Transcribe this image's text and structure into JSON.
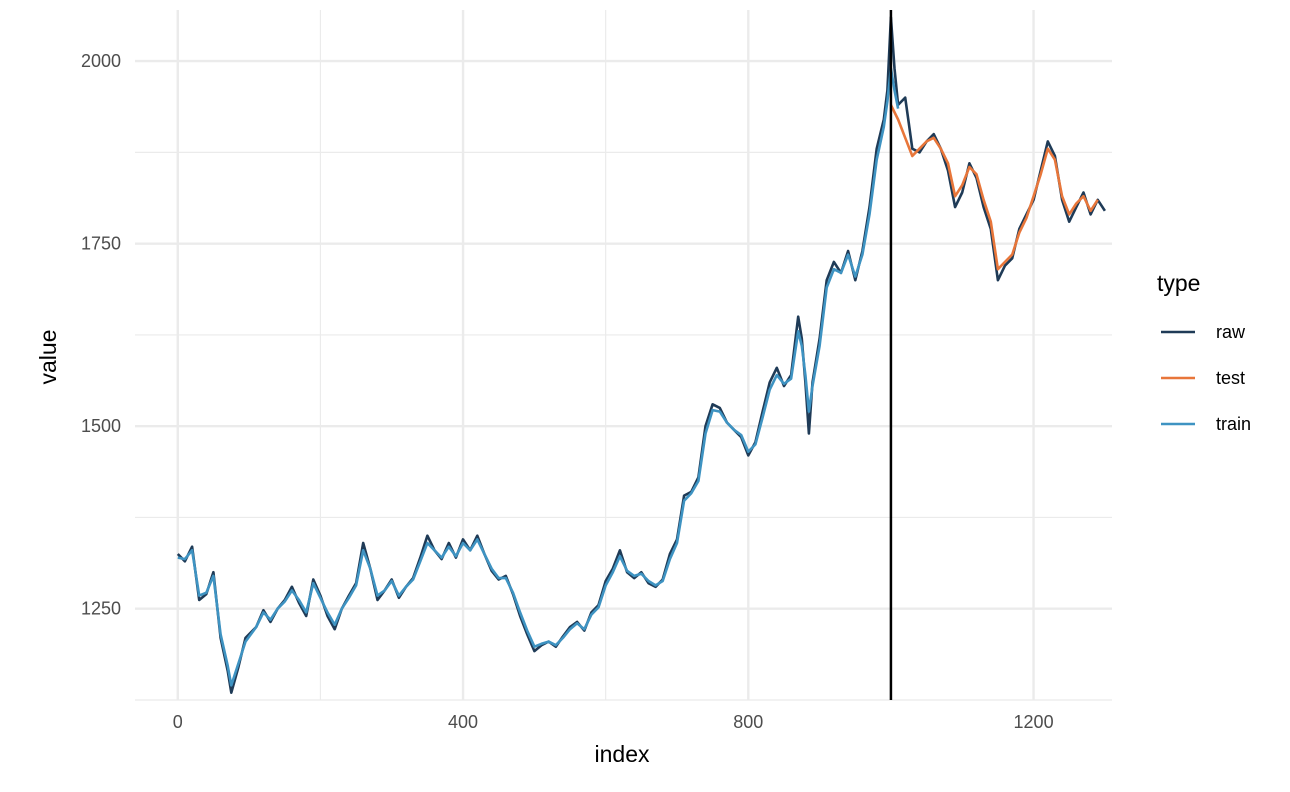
{
  "chart_data": {
    "type": "line",
    "xlabel": "index",
    "ylabel": "value",
    "xlim": [
      -60,
      1310
    ],
    "ylim": [
      1125,
      2070
    ],
    "x_ticks": [
      0,
      400,
      800,
      1200
    ],
    "y_ticks": [
      1250,
      1500,
      1750,
      2000
    ],
    "grid": true,
    "legend": {
      "title": "type",
      "placement": "right"
    },
    "vline_x": 1000,
    "series": [
      {
        "name": "raw",
        "color": "#1f3b57",
        "points": [
          [
            0,
            1325
          ],
          [
            10,
            1315
          ],
          [
            20,
            1335
          ],
          [
            30,
            1262
          ],
          [
            40,
            1270
          ],
          [
            50,
            1300
          ],
          [
            60,
            1210
          ],
          [
            70,
            1165
          ],
          [
            75,
            1135
          ],
          [
            85,
            1170
          ],
          [
            95,
            1210
          ],
          [
            110,
            1225
          ],
          [
            120,
            1248
          ],
          [
            130,
            1232
          ],
          [
            140,
            1250
          ],
          [
            150,
            1262
          ],
          [
            160,
            1280
          ],
          [
            170,
            1258
          ],
          [
            180,
            1240
          ],
          [
            190,
            1290
          ],
          [
            200,
            1268
          ],
          [
            210,
            1240
          ],
          [
            220,
            1222
          ],
          [
            230,
            1250
          ],
          [
            240,
            1268
          ],
          [
            250,
            1285
          ],
          [
            260,
            1340
          ],
          [
            270,
            1305
          ],
          [
            280,
            1262
          ],
          [
            290,
            1275
          ],
          [
            300,
            1290
          ],
          [
            310,
            1265
          ],
          [
            320,
            1280
          ],
          [
            330,
            1292
          ],
          [
            340,
            1320
          ],
          [
            350,
            1350
          ],
          [
            360,
            1330
          ],
          [
            370,
            1318
          ],
          [
            380,
            1340
          ],
          [
            390,
            1320
          ],
          [
            400,
            1345
          ],
          [
            410,
            1330
          ],
          [
            420,
            1350
          ],
          [
            430,
            1325
          ],
          [
            440,
            1302
          ],
          [
            450,
            1290
          ],
          [
            460,
            1295
          ],
          [
            470,
            1270
          ],
          [
            480,
            1240
          ],
          [
            490,
            1215
          ],
          [
            500,
            1192
          ],
          [
            510,
            1200
          ],
          [
            520,
            1205
          ],
          [
            530,
            1198
          ],
          [
            540,
            1212
          ],
          [
            550,
            1225
          ],
          [
            560,
            1232
          ],
          [
            570,
            1220
          ],
          [
            580,
            1245
          ],
          [
            590,
            1255
          ],
          [
            600,
            1288
          ],
          [
            610,
            1305
          ],
          [
            620,
            1330
          ],
          [
            630,
            1300
          ],
          [
            640,
            1292
          ],
          [
            650,
            1300
          ],
          [
            660,
            1285
          ],
          [
            670,
            1280
          ],
          [
            680,
            1290
          ],
          [
            690,
            1325
          ],
          [
            700,
            1345
          ],
          [
            710,
            1405
          ],
          [
            720,
            1410
          ],
          [
            730,
            1430
          ],
          [
            740,
            1500
          ],
          [
            750,
            1530
          ],
          [
            760,
            1525
          ],
          [
            770,
            1505
          ],
          [
            780,
            1495
          ],
          [
            790,
            1485
          ],
          [
            800,
            1460
          ],
          [
            810,
            1478
          ],
          [
            820,
            1520
          ],
          [
            830,
            1560
          ],
          [
            840,
            1580
          ],
          [
            850,
            1555
          ],
          [
            860,
            1570
          ],
          [
            870,
            1650
          ],
          [
            875,
            1620
          ],
          [
            880,
            1560
          ],
          [
            885,
            1490
          ],
          [
            890,
            1560
          ],
          [
            900,
            1620
          ],
          [
            910,
            1700
          ],
          [
            920,
            1725
          ],
          [
            930,
            1710
          ],
          [
            940,
            1740
          ],
          [
            950,
            1700
          ],
          [
            960,
            1740
          ],
          [
            970,
            1800
          ],
          [
            980,
            1880
          ],
          [
            990,
            1920
          ],
          [
            995,
            1960
          ],
          [
            1000,
            2060
          ],
          [
            1005,
            1990
          ],
          [
            1010,
            1940
          ],
          [
            1020,
            1950
          ],
          [
            1025,
            1915
          ],
          [
            1030,
            1880
          ],
          [
            1040,
            1875
          ],
          [
            1050,
            1890
          ],
          [
            1060,
            1900
          ],
          [
            1070,
            1880
          ],
          [
            1080,
            1850
          ],
          [
            1090,
            1800
          ],
          [
            1100,
            1820
          ],
          [
            1110,
            1860
          ],
          [
            1120,
            1840
          ],
          [
            1130,
            1800
          ],
          [
            1140,
            1770
          ],
          [
            1150,
            1700
          ],
          [
            1160,
            1720
          ],
          [
            1170,
            1730
          ],
          [
            1180,
            1770
          ],
          [
            1190,
            1790
          ],
          [
            1200,
            1810
          ],
          [
            1210,
            1850
          ],
          [
            1220,
            1890
          ],
          [
            1230,
            1870
          ],
          [
            1240,
            1810
          ],
          [
            1250,
            1780
          ],
          [
            1260,
            1800
          ],
          [
            1270,
            1820
          ],
          [
            1280,
            1790
          ],
          [
            1290,
            1810
          ],
          [
            1300,
            1795
          ]
        ]
      },
      {
        "name": "test",
        "color": "#e8763a",
        "points": [
          [
            1000,
            1940
          ],
          [
            1010,
            1920
          ],
          [
            1020,
            1895
          ],
          [
            1030,
            1870
          ],
          [
            1040,
            1880
          ],
          [
            1050,
            1890
          ],
          [
            1060,
            1895
          ],
          [
            1070,
            1880
          ],
          [
            1080,
            1860
          ],
          [
            1090,
            1815
          ],
          [
            1100,
            1830
          ],
          [
            1110,
            1855
          ],
          [
            1120,
            1845
          ],
          [
            1130,
            1810
          ],
          [
            1140,
            1780
          ],
          [
            1150,
            1715
          ],
          [
            1160,
            1725
          ],
          [
            1170,
            1735
          ],
          [
            1180,
            1765
          ],
          [
            1190,
            1785
          ],
          [
            1200,
            1815
          ],
          [
            1210,
            1845
          ],
          [
            1220,
            1880
          ],
          [
            1230,
            1865
          ],
          [
            1240,
            1815
          ],
          [
            1250,
            1790
          ],
          [
            1260,
            1805
          ],
          [
            1270,
            1815
          ],
          [
            1280,
            1795
          ],
          [
            1290,
            1810
          ]
        ]
      },
      {
        "name": "train",
        "color": "#3e93c2",
        "points": [
          [
            0,
            1320
          ],
          [
            10,
            1318
          ],
          [
            20,
            1330
          ],
          [
            30,
            1268
          ],
          [
            40,
            1272
          ],
          [
            50,
            1295
          ],
          [
            60,
            1215
          ],
          [
            70,
            1172
          ],
          [
            75,
            1145
          ],
          [
            85,
            1175
          ],
          [
            95,
            1205
          ],
          [
            110,
            1225
          ],
          [
            120,
            1245
          ],
          [
            130,
            1235
          ],
          [
            140,
            1250
          ],
          [
            150,
            1260
          ],
          [
            160,
            1275
          ],
          [
            170,
            1262
          ],
          [
            180,
            1245
          ],
          [
            190,
            1285
          ],
          [
            200,
            1265
          ],
          [
            210,
            1245
          ],
          [
            220,
            1228
          ],
          [
            230,
            1250
          ],
          [
            240,
            1265
          ],
          [
            250,
            1282
          ],
          [
            260,
            1330
          ],
          [
            270,
            1305
          ],
          [
            280,
            1268
          ],
          [
            290,
            1275
          ],
          [
            300,
            1288
          ],
          [
            310,
            1268
          ],
          [
            320,
            1280
          ],
          [
            330,
            1290
          ],
          [
            340,
            1315
          ],
          [
            350,
            1340
          ],
          [
            360,
            1330
          ],
          [
            370,
            1320
          ],
          [
            380,
            1335
          ],
          [
            390,
            1322
          ],
          [
            400,
            1340
          ],
          [
            410,
            1330
          ],
          [
            420,
            1345
          ],
          [
            430,
            1325
          ],
          [
            440,
            1305
          ],
          [
            450,
            1292
          ],
          [
            460,
            1292
          ],
          [
            470,
            1272
          ],
          [
            480,
            1245
          ],
          [
            490,
            1220
          ],
          [
            500,
            1198
          ],
          [
            510,
            1202
          ],
          [
            520,
            1205
          ],
          [
            530,
            1200
          ],
          [
            540,
            1210
          ],
          [
            550,
            1222
          ],
          [
            560,
            1230
          ],
          [
            570,
            1222
          ],
          [
            580,
            1242
          ],
          [
            590,
            1252
          ],
          [
            600,
            1282
          ],
          [
            610,
            1300
          ],
          [
            620,
            1322
          ],
          [
            630,
            1302
          ],
          [
            640,
            1295
          ],
          [
            650,
            1298
          ],
          [
            660,
            1288
          ],
          [
            670,
            1282
          ],
          [
            680,
            1288
          ],
          [
            690,
            1318
          ],
          [
            700,
            1340
          ],
          [
            710,
            1398
          ],
          [
            720,
            1408
          ],
          [
            730,
            1425
          ],
          [
            740,
            1490
          ],
          [
            750,
            1522
          ],
          [
            760,
            1520
          ],
          [
            770,
            1505
          ],
          [
            780,
            1495
          ],
          [
            790,
            1488
          ],
          [
            800,
            1465
          ],
          [
            810,
            1475
          ],
          [
            820,
            1512
          ],
          [
            830,
            1550
          ],
          [
            840,
            1570
          ],
          [
            850,
            1558
          ],
          [
            860,
            1565
          ],
          [
            870,
            1630
          ],
          [
            875,
            1610
          ],
          [
            880,
            1570
          ],
          [
            885,
            1520
          ],
          [
            890,
            1555
          ],
          [
            900,
            1610
          ],
          [
            910,
            1690
          ],
          [
            920,
            1715
          ],
          [
            930,
            1710
          ],
          [
            940,
            1735
          ],
          [
            950,
            1705
          ],
          [
            960,
            1735
          ],
          [
            970,
            1790
          ],
          [
            980,
            1865
          ],
          [
            990,
            1910
          ],
          [
            995,
            1945
          ],
          [
            1000,
            1990
          ],
          [
            1005,
            1960
          ],
          [
            1010,
            1935
          ]
        ]
      }
    ]
  }
}
